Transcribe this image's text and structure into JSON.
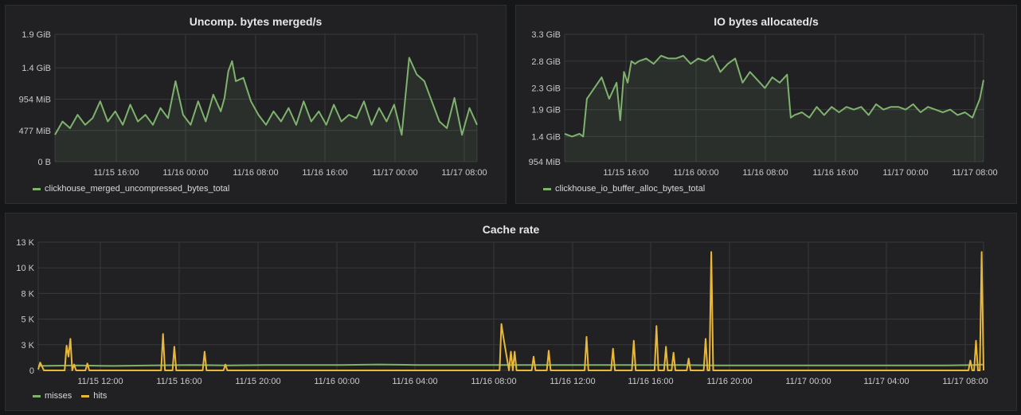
{
  "panels": [
    {
      "id": "p1",
      "title": "Uncomp. bytes merged/s",
      "colors": {
        "line": "#7eb26d",
        "fill": "rgba(126,178,109,0.10)"
      },
      "chart_data": {
        "type": "line",
        "title": "Uncomp. bytes merged/s",
        "x_range_hours": [
          0,
          75
        ],
        "ylim": [
          0,
          1.9
        ],
        "y_unit": "GiB",
        "y_ticks": [
          {
            "v": 0,
            "label": "0 B"
          },
          {
            "v": 0.466,
            "label": "477 MiB"
          },
          {
            "v": 0.932,
            "label": "954 MiB"
          },
          {
            "v": 1.4,
            "label": "1.4 GiB"
          },
          {
            "v": 1.9,
            "label": "1.9 GiB"
          }
        ],
        "x_ticks": [
          {
            "v": 14,
            "label": "11/15 16:00"
          },
          {
            "v": 22,
            "label": "11/16 00:00"
          },
          {
            "v": 30,
            "label": "11/16 08:00"
          },
          {
            "v": 38,
            "label": "11/16 16:00"
          },
          {
            "v": 46,
            "label": "11/17 00:00"
          },
          {
            "v": 54,
            "label": "11/17 08:00"
          }
        ],
        "series": [
          {
            "name": "clickhouse_merged_uncompressed_bytes_total",
            "x": [
              0,
              1,
              2,
              3,
              4,
              5,
              6,
              7,
              8,
              9,
              10,
              11,
              12,
              13,
              14,
              15,
              16,
              17,
              18,
              19,
              20,
              21,
              22,
              22.5,
              23,
              23.5,
              24,
              25,
              26,
              27,
              28,
              29,
              30,
              31,
              32,
              33,
              34,
              35,
              36,
              37,
              38,
              39,
              40,
              41,
              42,
              43,
              44,
              45,
              46,
              47,
              48,
              49,
              50,
              51,
              52,
              53,
              54,
              55,
              56
            ],
            "values": [
              0.4,
              0.6,
              0.5,
              0.7,
              0.55,
              0.65,
              0.9,
              0.6,
              0.75,
              0.55,
              0.85,
              0.6,
              0.7,
              0.55,
              0.8,
              0.65,
              1.2,
              0.7,
              0.55,
              0.9,
              0.6,
              1.0,
              0.75,
              0.95,
              1.35,
              1.5,
              1.2,
              1.25,
              0.9,
              0.7,
              0.55,
              0.75,
              0.6,
              0.8,
              0.55,
              0.9,
              0.6,
              0.75,
              0.55,
              0.85,
              0.6,
              0.7,
              0.65,
              0.9,
              0.55,
              0.8,
              0.6,
              0.85,
              0.4,
              1.55,
              1.3,
              1.2,
              0.9,
              0.6,
              0.5,
              0.95,
              0.4,
              0.8,
              0.55
            ]
          }
        ]
      }
    },
    {
      "id": "p2",
      "title": "IO bytes allocated/s",
      "colors": {
        "line": "#7eb26d",
        "fill": "rgba(126,178,109,0.10)"
      },
      "chart_data": {
        "type": "line",
        "title": "IO bytes allocated/s",
        "x_range_hours": [
          0,
          75
        ],
        "ylim": [
          0.932,
          3.3
        ],
        "y_unit": "GiB",
        "y_ticks": [
          {
            "v": 0.932,
            "label": "954 MiB"
          },
          {
            "v": 1.4,
            "label": "1.4 GiB"
          },
          {
            "v": 1.9,
            "label": "1.9 GiB"
          },
          {
            "v": 2.3,
            "label": "2.3 GiB"
          },
          {
            "v": 2.8,
            "label": "2.8 GiB"
          },
          {
            "v": 3.3,
            "label": "3.3 GiB"
          }
        ],
        "x_ticks": [
          {
            "v": 14,
            "label": "11/15 16:00"
          },
          {
            "v": 22,
            "label": "11/16 00:00"
          },
          {
            "v": 30,
            "label": "11/16 08:00"
          },
          {
            "v": 38,
            "label": "11/16 16:00"
          },
          {
            "v": 46,
            "label": "11/17 00:00"
          },
          {
            "v": 54,
            "label": "11/17 08:00"
          }
        ],
        "series": [
          {
            "name": "clickhouse_io_buffer_alloc_bytes_total",
            "x": [
              0,
              1,
              2,
              2.5,
              3,
              3.5,
              4,
              5,
              6,
              7,
              7.5,
              8,
              8.5,
              9,
              9.5,
              10,
              11,
              12,
              13,
              14,
              15,
              16,
              17,
              18,
              19,
              20,
              21,
              22,
              23,
              24,
              25,
              26,
              27,
              28,
              29,
              30,
              30.5,
              31,
              32,
              33,
              34,
              35,
              36,
              37,
              38,
              39,
              40,
              41,
              42,
              43,
              44,
              45,
              46,
              47,
              48,
              49,
              50,
              51,
              52,
              53,
              54,
              55,
              56,
              56.5
            ],
            "values": [
              1.45,
              1.4,
              1.45,
              1.4,
              2.1,
              2.2,
              2.3,
              2.5,
              2.1,
              2.4,
              1.7,
              2.6,
              2.4,
              2.8,
              2.75,
              2.8,
              2.85,
              2.75,
              2.9,
              2.85,
              2.85,
              2.9,
              2.75,
              2.85,
              2.8,
              2.9,
              2.6,
              2.75,
              2.85,
              2.4,
              2.6,
              2.45,
              2.3,
              2.5,
              2.4,
              2.55,
              1.75,
              1.8,
              1.85,
              1.75,
              1.95,
              1.8,
              1.95,
              1.85,
              1.95,
              1.9,
              1.95,
              1.8,
              2.0,
              1.9,
              1.95,
              1.95,
              1.9,
              2.0,
              1.85,
              1.95,
              1.9,
              1.85,
              1.9,
              1.8,
              1.85,
              1.75,
              2.1,
              2.45
            ]
          }
        ]
      }
    },
    {
      "id": "p3",
      "title": "Cache rate",
      "colors": {
        "misses": "#7eb26d",
        "hits": "#eab839"
      },
      "chart_data": {
        "type": "line",
        "title": "Cache rate",
        "x_range_hours": [
          0,
          75
        ],
        "ylim": [
          0,
          13
        ],
        "y_unit": "K",
        "y_ticks": [
          {
            "v": 0,
            "label": "0"
          },
          {
            "v": 2.6,
            "label": "3 K"
          },
          {
            "v": 5.2,
            "label": "5 K"
          },
          {
            "v": 7.8,
            "label": "8 K"
          },
          {
            "v": 10.4,
            "label": "10 K"
          },
          {
            "v": 13,
            "label": "13 K"
          }
        ],
        "x_ticks": [
          {
            "v": 6,
            "label": "11/15 12:00"
          },
          {
            "v": 10,
            "label": "11/15 16:00"
          },
          {
            "v": 14,
            "label": "11/15 20:00"
          },
          {
            "v": 18,
            "label": "11/16 00:00"
          },
          {
            "v": 22,
            "label": "11/16 04:00"
          },
          {
            "v": 26,
            "label": "11/16 08:00"
          },
          {
            "v": 30,
            "label": "11/16 12:00"
          },
          {
            "v": 34,
            "label": "11/16 16:00"
          },
          {
            "v": 38,
            "label": "11/16 20:00"
          },
          {
            "v": 42,
            "label": "11/17 00:00"
          },
          {
            "v": 46,
            "label": "11/17 04:00"
          },
          {
            "v": 50,
            "label": "11/17 08:00"
          }
        ],
        "series": [
          {
            "name": "misses",
            "x": [
              0,
              2,
              4,
              6,
              8,
              10,
              12,
              14,
              16,
              18,
              20,
              22,
              24,
              26,
              28,
              30,
              32,
              34,
              36,
              38,
              40,
              42,
              44,
              46,
              48,
              49.5,
              50
            ],
            "values": [
              0.45,
              0.5,
              0.45,
              0.5,
              0.55,
              0.5,
              0.55,
              0.55,
              0.55,
              0.6,
              0.55,
              0.55,
              0.55,
              0.55,
              0.55,
              0.55,
              0.55,
              0.55,
              0.5,
              0.5,
              0.5,
              0.5,
              0.5,
              0.5,
              0.5,
              0.55,
              0.6
            ]
          },
          {
            "name": "hits",
            "x": [
              0,
              0.1,
              0.3,
              1.4,
              1.5,
              1.6,
              1.7,
              1.8,
              1.9,
              2.0,
              2.5,
              2.6,
              2.7,
              6.5,
              6.6,
              6.7,
              7.1,
              7.2,
              7.3,
              8.7,
              8.8,
              8.9,
              9.8,
              9.9,
              10.0,
              24.4,
              24.5,
              24.6,
              24.9,
              25.0,
              25.1,
              25.2,
              25.3,
              26.1,
              26.2,
              26.3,
              26.9,
              27.0,
              27.1,
              28.9,
              29.0,
              29.1,
              30.3,
              30.4,
              30.5,
              31.4,
              31.5,
              31.6,
              32.6,
              32.7,
              32.8,
              33.1,
              33.2,
              33.3,
              33.5,
              33.6,
              33.7,
              34.3,
              34.4,
              34.5,
              35.2,
              35.3,
              35.4,
              35.5,
              35.6,
              35.7,
              49.2,
              49.3,
              49.4,
              49.5,
              49.6,
              49.7,
              49.8,
              49.9,
              50.0
            ],
            "values": [
              0.1,
              0.8,
              0.0,
              0.0,
              2.5,
              1.4,
              3.2,
              0.0,
              0.6,
              0.0,
              0.0,
              0.7,
              0.0,
              0.0,
              3.7,
              0.0,
              0.0,
              2.4,
              0.0,
              0.0,
              1.9,
              0.0,
              0.0,
              0.6,
              0.0,
              0.0,
              4.7,
              3.4,
              0.0,
              1.9,
              0.0,
              1.9,
              0.0,
              0.0,
              1.4,
              0.0,
              0.0,
              2.0,
              0.0,
              0.0,
              3.4,
              0.0,
              0.0,
              2.2,
              0.0,
              0.0,
              3.0,
              0.0,
              0.0,
              4.5,
              0.0,
              0.0,
              2.4,
              0.0,
              0.0,
              1.8,
              0.0,
              0.0,
              1.2,
              0.0,
              0.0,
              3.2,
              0.0,
              0.0,
              12.0,
              0.0,
              0.0,
              1.0,
              0.0,
              0.0,
              3.0,
              0.0,
              0.0,
              12.0,
              0.0
            ]
          }
        ]
      }
    }
  ],
  "legends": {
    "p1": [
      {
        "label": "clickhouse_merged_uncompressed_bytes_total",
        "color": "#7eb26d"
      }
    ],
    "p2": [
      {
        "label": "clickhouse_io_buffer_alloc_bytes_total",
        "color": "#7eb26d"
      }
    ],
    "p3": [
      {
        "label": "misses",
        "color": "#7eb26d"
      },
      {
        "label": "hits",
        "color": "#eab839"
      }
    ]
  }
}
